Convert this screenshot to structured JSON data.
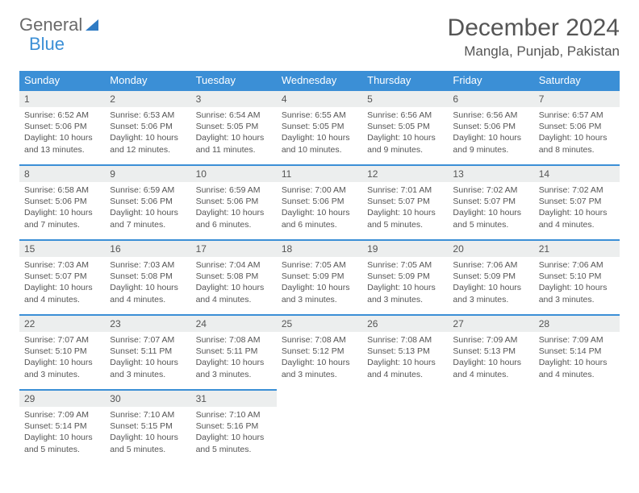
{
  "logo": {
    "part1": "General",
    "part2": "Blue"
  },
  "title": "December 2024",
  "location": "Mangla, Punjab, Pakistan",
  "colors": {
    "header_bg": "#3b8fd6",
    "daynum_bg": "#eceeee",
    "border": "#3b8fd6",
    "text": "#555555",
    "bg": "#ffffff"
  },
  "weekdays": [
    "Sunday",
    "Monday",
    "Tuesday",
    "Wednesday",
    "Thursday",
    "Friday",
    "Saturday"
  ],
  "weeks": [
    [
      {
        "n": "1",
        "sr": "Sunrise: 6:52 AM",
        "ss": "Sunset: 5:06 PM",
        "dl": "Daylight: 10 hours and 13 minutes."
      },
      {
        "n": "2",
        "sr": "Sunrise: 6:53 AM",
        "ss": "Sunset: 5:06 PM",
        "dl": "Daylight: 10 hours and 12 minutes."
      },
      {
        "n": "3",
        "sr": "Sunrise: 6:54 AM",
        "ss": "Sunset: 5:05 PM",
        "dl": "Daylight: 10 hours and 11 minutes."
      },
      {
        "n": "4",
        "sr": "Sunrise: 6:55 AM",
        "ss": "Sunset: 5:05 PM",
        "dl": "Daylight: 10 hours and 10 minutes."
      },
      {
        "n": "5",
        "sr": "Sunrise: 6:56 AM",
        "ss": "Sunset: 5:05 PM",
        "dl": "Daylight: 10 hours and 9 minutes."
      },
      {
        "n": "6",
        "sr": "Sunrise: 6:56 AM",
        "ss": "Sunset: 5:06 PM",
        "dl": "Daylight: 10 hours and 9 minutes."
      },
      {
        "n": "7",
        "sr": "Sunrise: 6:57 AM",
        "ss": "Sunset: 5:06 PM",
        "dl": "Daylight: 10 hours and 8 minutes."
      }
    ],
    [
      {
        "n": "8",
        "sr": "Sunrise: 6:58 AM",
        "ss": "Sunset: 5:06 PM",
        "dl": "Daylight: 10 hours and 7 minutes."
      },
      {
        "n": "9",
        "sr": "Sunrise: 6:59 AM",
        "ss": "Sunset: 5:06 PM",
        "dl": "Daylight: 10 hours and 7 minutes."
      },
      {
        "n": "10",
        "sr": "Sunrise: 6:59 AM",
        "ss": "Sunset: 5:06 PM",
        "dl": "Daylight: 10 hours and 6 minutes."
      },
      {
        "n": "11",
        "sr": "Sunrise: 7:00 AM",
        "ss": "Sunset: 5:06 PM",
        "dl": "Daylight: 10 hours and 6 minutes."
      },
      {
        "n": "12",
        "sr": "Sunrise: 7:01 AM",
        "ss": "Sunset: 5:07 PM",
        "dl": "Daylight: 10 hours and 5 minutes."
      },
      {
        "n": "13",
        "sr": "Sunrise: 7:02 AM",
        "ss": "Sunset: 5:07 PM",
        "dl": "Daylight: 10 hours and 5 minutes."
      },
      {
        "n": "14",
        "sr": "Sunrise: 7:02 AM",
        "ss": "Sunset: 5:07 PM",
        "dl": "Daylight: 10 hours and 4 minutes."
      }
    ],
    [
      {
        "n": "15",
        "sr": "Sunrise: 7:03 AM",
        "ss": "Sunset: 5:07 PM",
        "dl": "Daylight: 10 hours and 4 minutes."
      },
      {
        "n": "16",
        "sr": "Sunrise: 7:03 AM",
        "ss": "Sunset: 5:08 PM",
        "dl": "Daylight: 10 hours and 4 minutes."
      },
      {
        "n": "17",
        "sr": "Sunrise: 7:04 AM",
        "ss": "Sunset: 5:08 PM",
        "dl": "Daylight: 10 hours and 4 minutes."
      },
      {
        "n": "18",
        "sr": "Sunrise: 7:05 AM",
        "ss": "Sunset: 5:09 PM",
        "dl": "Daylight: 10 hours and 3 minutes."
      },
      {
        "n": "19",
        "sr": "Sunrise: 7:05 AM",
        "ss": "Sunset: 5:09 PM",
        "dl": "Daylight: 10 hours and 3 minutes."
      },
      {
        "n": "20",
        "sr": "Sunrise: 7:06 AM",
        "ss": "Sunset: 5:09 PM",
        "dl": "Daylight: 10 hours and 3 minutes."
      },
      {
        "n": "21",
        "sr": "Sunrise: 7:06 AM",
        "ss": "Sunset: 5:10 PM",
        "dl": "Daylight: 10 hours and 3 minutes."
      }
    ],
    [
      {
        "n": "22",
        "sr": "Sunrise: 7:07 AM",
        "ss": "Sunset: 5:10 PM",
        "dl": "Daylight: 10 hours and 3 minutes."
      },
      {
        "n": "23",
        "sr": "Sunrise: 7:07 AM",
        "ss": "Sunset: 5:11 PM",
        "dl": "Daylight: 10 hours and 3 minutes."
      },
      {
        "n": "24",
        "sr": "Sunrise: 7:08 AM",
        "ss": "Sunset: 5:11 PM",
        "dl": "Daylight: 10 hours and 3 minutes."
      },
      {
        "n": "25",
        "sr": "Sunrise: 7:08 AM",
        "ss": "Sunset: 5:12 PM",
        "dl": "Daylight: 10 hours and 3 minutes."
      },
      {
        "n": "26",
        "sr": "Sunrise: 7:08 AM",
        "ss": "Sunset: 5:13 PM",
        "dl": "Daylight: 10 hours and 4 minutes."
      },
      {
        "n": "27",
        "sr": "Sunrise: 7:09 AM",
        "ss": "Sunset: 5:13 PM",
        "dl": "Daylight: 10 hours and 4 minutes."
      },
      {
        "n": "28",
        "sr": "Sunrise: 7:09 AM",
        "ss": "Sunset: 5:14 PM",
        "dl": "Daylight: 10 hours and 4 minutes."
      }
    ],
    [
      {
        "n": "29",
        "sr": "Sunrise: 7:09 AM",
        "ss": "Sunset: 5:14 PM",
        "dl": "Daylight: 10 hours and 5 minutes."
      },
      {
        "n": "30",
        "sr": "Sunrise: 7:10 AM",
        "ss": "Sunset: 5:15 PM",
        "dl": "Daylight: 10 hours and 5 minutes."
      },
      {
        "n": "31",
        "sr": "Sunrise: 7:10 AM",
        "ss": "Sunset: 5:16 PM",
        "dl": "Daylight: 10 hours and 5 minutes."
      },
      null,
      null,
      null,
      null
    ]
  ]
}
